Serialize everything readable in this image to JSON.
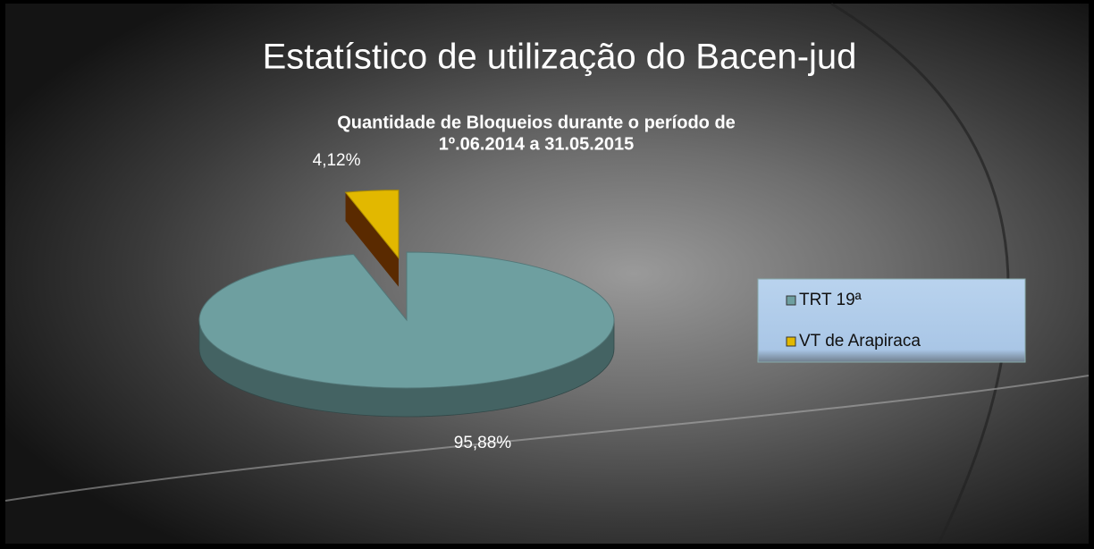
{
  "chart_data": {
    "type": "pie3d",
    "title": "Estatístico de utilização do Bacen-jud",
    "subtitle": [
      "Quantidade de Bloqueios durante o período de",
      "1º.06.2014  a  31.05.2015"
    ],
    "categories": [
      "TRT 19ª",
      "VT de Arapiraca"
    ],
    "values": [
      95.88,
      4.12
    ],
    "value_labels": [
      "95,88%",
      "4,12%"
    ],
    "colors": [
      "#6e9fa0",
      "#e2b800"
    ],
    "legend": "right"
  }
}
